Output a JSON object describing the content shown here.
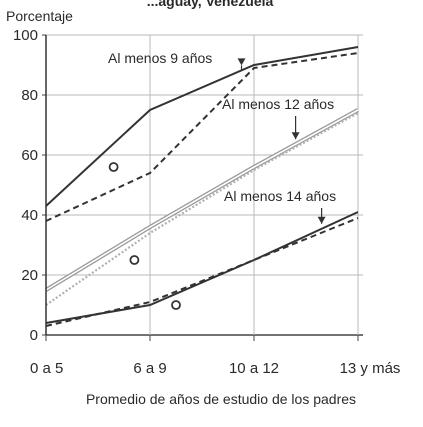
{
  "chart_data": {
    "type": "line",
    "title": "",
    "header_fragment": "...aguay, Venezuela",
    "ylabel": "Porcentaje",
    "xlabel": "Promedio de años de estudio de los padres",
    "categories": [
      "0 a 5",
      "6 a 9",
      "10 a 12",
      "13 y más"
    ],
    "ylim": [
      0,
      100
    ],
    "yticks": [
      0,
      20,
      40,
      60,
      80,
      100
    ],
    "grid": true,
    "series": [
      {
        "name": "Al menos 9 años",
        "style": "solid",
        "color": "#333333",
        "values": [
          43,
          75,
          90,
          96
        ]
      },
      {
        "name": "Al menos 9 años",
        "style": "dashed",
        "color": "#333333",
        "values": [
          38,
          54,
          89,
          94
        ]
      },
      {
        "name": "Al menos 12 años",
        "style": "double",
        "color": "#9a9a9a",
        "values": [
          15,
          36,
          56,
          75
        ]
      },
      {
        "name": "Al menos 12 años",
        "style": "dotted",
        "color": "#b0b0b0",
        "values": [
          10,
          34,
          55,
          74
        ]
      },
      {
        "name": "Al menos 14 años",
        "style": "solid",
        "color": "#333333",
        "values": [
          4,
          10,
          25,
          41
        ]
      },
      {
        "name": "Al menos 14 años",
        "style": "dashed",
        "color": "#333333",
        "values": [
          3,
          11,
          25,
          39
        ]
      }
    ],
    "annotations": [
      {
        "text": "Al menos 9 años",
        "target_series": 0,
        "target_x": 1.88
      },
      {
        "text": "Al menos 12 años",
        "target_series": 2,
        "target_x": 2.4
      },
      {
        "text": "Al menos 14 años",
        "target_series": 4,
        "target_x": 2.65
      }
    ],
    "markers": [
      {
        "shape": "circle",
        "x": 0.65,
        "y": 56
      },
      {
        "shape": "circle",
        "x": 0.85,
        "y": 25
      },
      {
        "shape": "circle",
        "x": 1.25,
        "y": 10
      }
    ]
  }
}
